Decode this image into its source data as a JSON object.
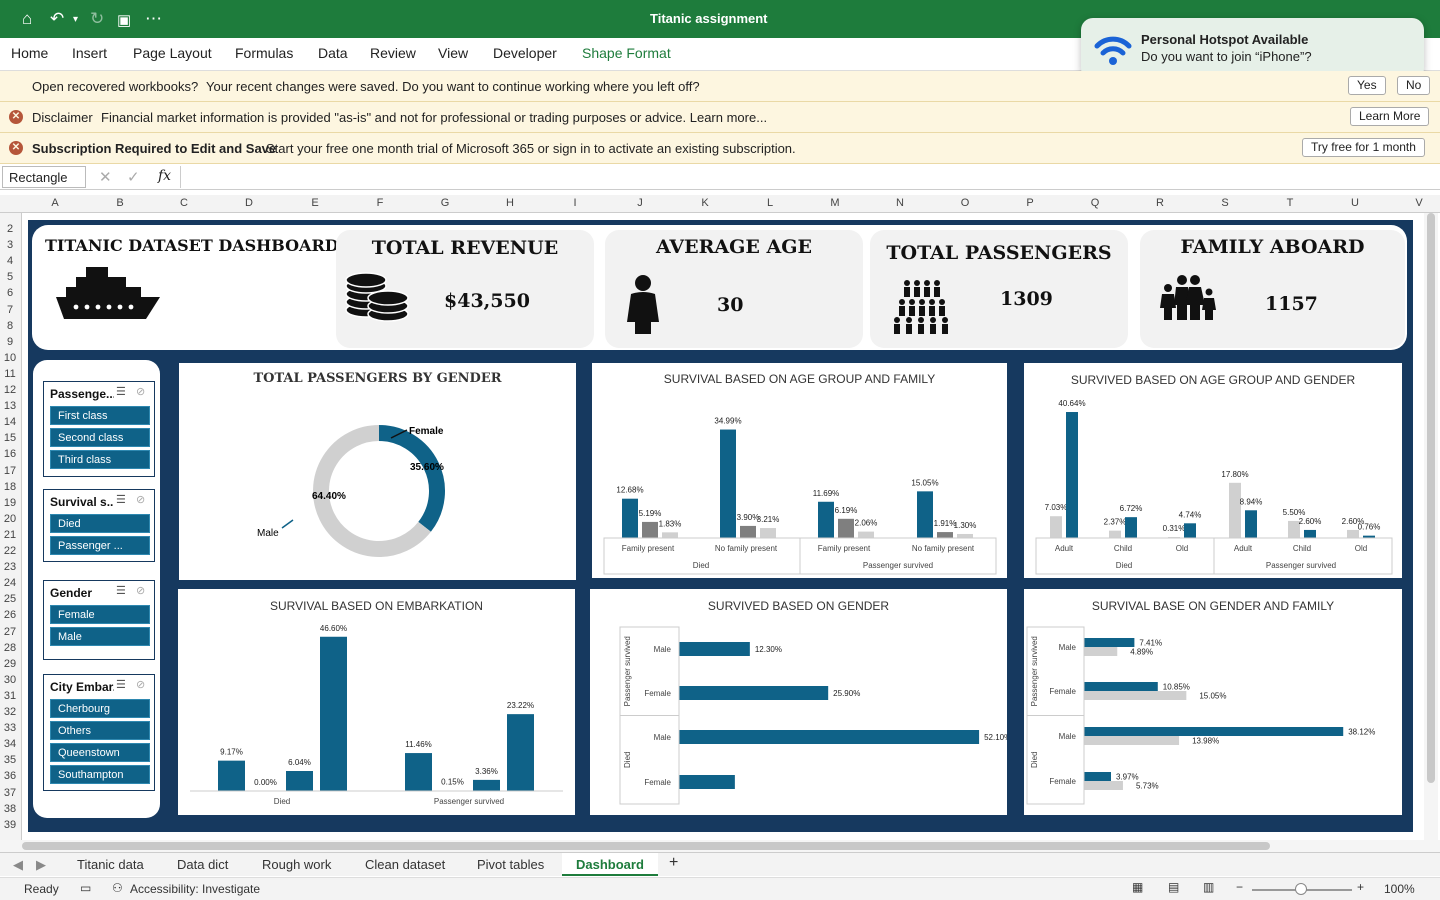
{
  "app": {
    "title": "Titanic assignment"
  },
  "ribbon_tabs": [
    "Home",
    "Insert",
    "Page Layout",
    "Formulas",
    "Data",
    "Review",
    "View",
    "Developer",
    "Shape Format"
  ],
  "notification": {
    "title": "Personal Hotspot Available",
    "body": "Do you want to join “iPhone”?"
  },
  "messages": {
    "recovered": {
      "text": "Open recovered workbooks?",
      "detail": "Your recent changes were saved. Do you want to continue working where you left off?",
      "yes": "Yes",
      "no": "No"
    },
    "disclaimer": {
      "title": "Disclaimer",
      "detail": "Financial market information is provided \"as-is\" and not for professional or trading purposes or advice. Learn more...",
      "button": "Learn More"
    },
    "subscription": {
      "title": "Subscription Required to Edit and Save",
      "detail": "Start your free one month trial of Microsoft 365 or sign in to activate an existing subscription.",
      "button": "Try free for 1 month"
    }
  },
  "formula_bar": {
    "name_box": "Rectangle",
    "fx": "fx"
  },
  "columns": [
    "A",
    "B",
    "C",
    "D",
    "E",
    "F",
    "G",
    "H",
    "I",
    "J",
    "K",
    "L",
    "M",
    "N",
    "O",
    "P",
    "Q",
    "R",
    "S",
    "T",
    "U",
    "V"
  ],
  "rows": [
    "2",
    "3",
    "4",
    "5",
    "6",
    "7",
    "8",
    "9",
    "10",
    "11",
    "12",
    "13",
    "14",
    "15",
    "16",
    "17",
    "18",
    "19",
    "20",
    "21",
    "22",
    "23",
    "24",
    "25",
    "26",
    "27",
    "28",
    "29",
    "30",
    "31",
    "32",
    "33",
    "34",
    "35",
    "36",
    "37",
    "38",
    "39"
  ],
  "dashboard": {
    "title": "TITANIC DATASET DASHBOARD",
    "kpis": {
      "revenue": {
        "label": "TOTAL REVENUE",
        "value": "$43,550"
      },
      "age": {
        "label": "AVERAGE AGE",
        "value": "30"
      },
      "passengers": {
        "label": "TOTAL PASSENGERS",
        "value": "1309"
      },
      "family": {
        "label": "FAMILY ABOARD",
        "value": "1157"
      }
    },
    "slicers": [
      {
        "title": "Passenge...",
        "items": [
          "First class",
          "Second class",
          "Third class"
        ]
      },
      {
        "title": "Survival s...",
        "items": [
          "Died",
          "Passenger ..."
        ]
      },
      {
        "title": "Gender",
        "items": [
          "Female",
          "Male"
        ]
      },
      {
        "title": "City Embar...",
        "items": [
          "Cherbourg",
          "Others",
          "Queenstown",
          "Southampton"
        ]
      }
    ]
  },
  "colors": {
    "primary": "#0f6288",
    "secondary": "#7f7f7f",
    "light": "#d0d0d0",
    "navy": "#16395f",
    "excel_green": "#1e7c3c"
  },
  "chart_data": [
    {
      "type": "pie",
      "title": "TOTAL PASSENGERS BY GENDER",
      "labels": [
        "Female",
        "Male"
      ],
      "values": [
        35.6,
        64.4
      ],
      "value_labels": [
        "35.60%",
        "64.40%"
      ]
    },
    {
      "type": "bar",
      "title": "SURVIVAL BASED ON AGE GROUP AND FAMILY",
      "groups": [
        "Died",
        "Passenger survived"
      ],
      "categories": [
        "Family present",
        "No family present",
        "Family present",
        "No family present"
      ],
      "series": [
        {
          "values": [
            12.68,
            34.99,
            11.69,
            15.05
          ]
        },
        {
          "values": [
            5.19,
            3.9,
            6.19,
            1.91
          ]
        },
        {
          "values": [
            1.83,
            3.21,
            2.06,
            1.3
          ]
        }
      ]
    },
    {
      "type": "bar",
      "title": "SURVIVED BASED ON AGE GROUP AND GENDER",
      "groups": [
        "Died",
        "Passenger survived"
      ],
      "categories": [
        "Adult",
        "Child",
        "Old",
        "Adult",
        "Child",
        "Old"
      ],
      "series": [
        {
          "values": [
            7.03,
            2.37,
            0.31,
            17.8,
            5.5,
            2.6
          ]
        },
        {
          "values": [
            40.64,
            6.72,
            4.74,
            8.94,
            2.6,
            0.76
          ]
        }
      ]
    },
    {
      "type": "bar",
      "title": "SURVIVAL BASED ON EMBARKATION",
      "groups": [
        "Died",
        "Passenger survived"
      ],
      "series": [
        {
          "values": [
            9.17,
            0.0,
            6.04,
            46.6,
            11.46,
            0.15,
            3.36,
            23.22
          ]
        }
      ]
    },
    {
      "type": "bar",
      "title": "SURVIVED BASED ON GENDER",
      "orientation": "horizontal",
      "groups": [
        "Passenger survived",
        "Died"
      ],
      "categories": [
        "Male",
        "Female",
        "Male",
        "Female"
      ],
      "series": [
        {
          "values": [
            12.3,
            25.9,
            52.1,
            9.7
          ],
          "value_labels": [
            "12.30%",
            "25.90%",
            "52.10%",
            ""
          ]
        }
      ]
    },
    {
      "type": "bar",
      "title": "SURVIVAL BASE ON GENDER AND FAMILY",
      "orientation": "horizontal",
      "groups": [
        "Passenger survived",
        "Died"
      ],
      "categories": [
        "Male",
        "Female",
        "Male",
        "Female"
      ],
      "series": [
        {
          "values": [
            7.41,
            10.85,
            38.12,
            3.97
          ]
        },
        {
          "values": [
            4.89,
            15.05,
            13.98,
            5.73
          ]
        }
      ]
    }
  ],
  "sheet_tabs": [
    "Titanic data",
    "Data dict",
    "Rough work",
    "Clean dataset",
    "Pivot tables",
    "Dashboard"
  ],
  "status": {
    "ready": "Ready",
    "accessibility": "Accessibility: Investigate",
    "zoom": "100%"
  }
}
